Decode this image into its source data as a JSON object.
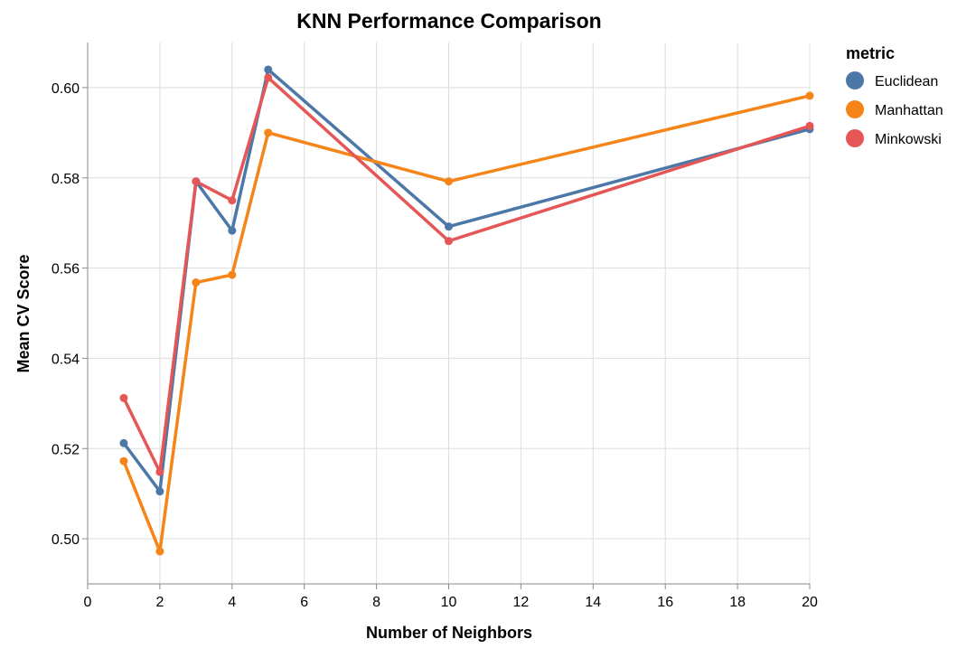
{
  "chart_data": {
    "type": "line",
    "title": "KNN Performance Comparison",
    "xlabel": "Number of Neighbors",
    "ylabel": "Mean CV Score",
    "xlim": [
      0,
      20
    ],
    "ylim": [
      0.49,
      0.61
    ],
    "x_ticks": [
      0,
      2,
      4,
      6,
      8,
      10,
      12,
      14,
      16,
      18,
      20
    ],
    "y_ticks": [
      0.5,
      0.52,
      0.54,
      0.56,
      0.58,
      0.6
    ],
    "y_tick_labels": [
      "0.50",
      "0.52",
      "0.54",
      "0.56",
      "0.58",
      "0.60"
    ],
    "grid": true,
    "legend": {
      "title": "metric",
      "position": "right"
    },
    "x": [
      1,
      2,
      3,
      4,
      5,
      10,
      20
    ],
    "series": [
      {
        "name": "Euclidean",
        "color": "#4c78a8",
        "values": [
          0.5212,
          0.5105,
          0.5792,
          0.5683,
          0.604,
          0.5692,
          0.5908
        ]
      },
      {
        "name": "Manhattan",
        "color": "#f58518",
        "values": [
          0.5172,
          0.4972,
          0.5568,
          0.5585,
          0.59,
          0.5792,
          0.5982
        ]
      },
      {
        "name": "Minkowski",
        "color": "#e45756",
        "values": [
          0.5312,
          0.5148,
          0.5792,
          0.575,
          0.6022,
          0.566,
          0.5915
        ]
      }
    ]
  }
}
